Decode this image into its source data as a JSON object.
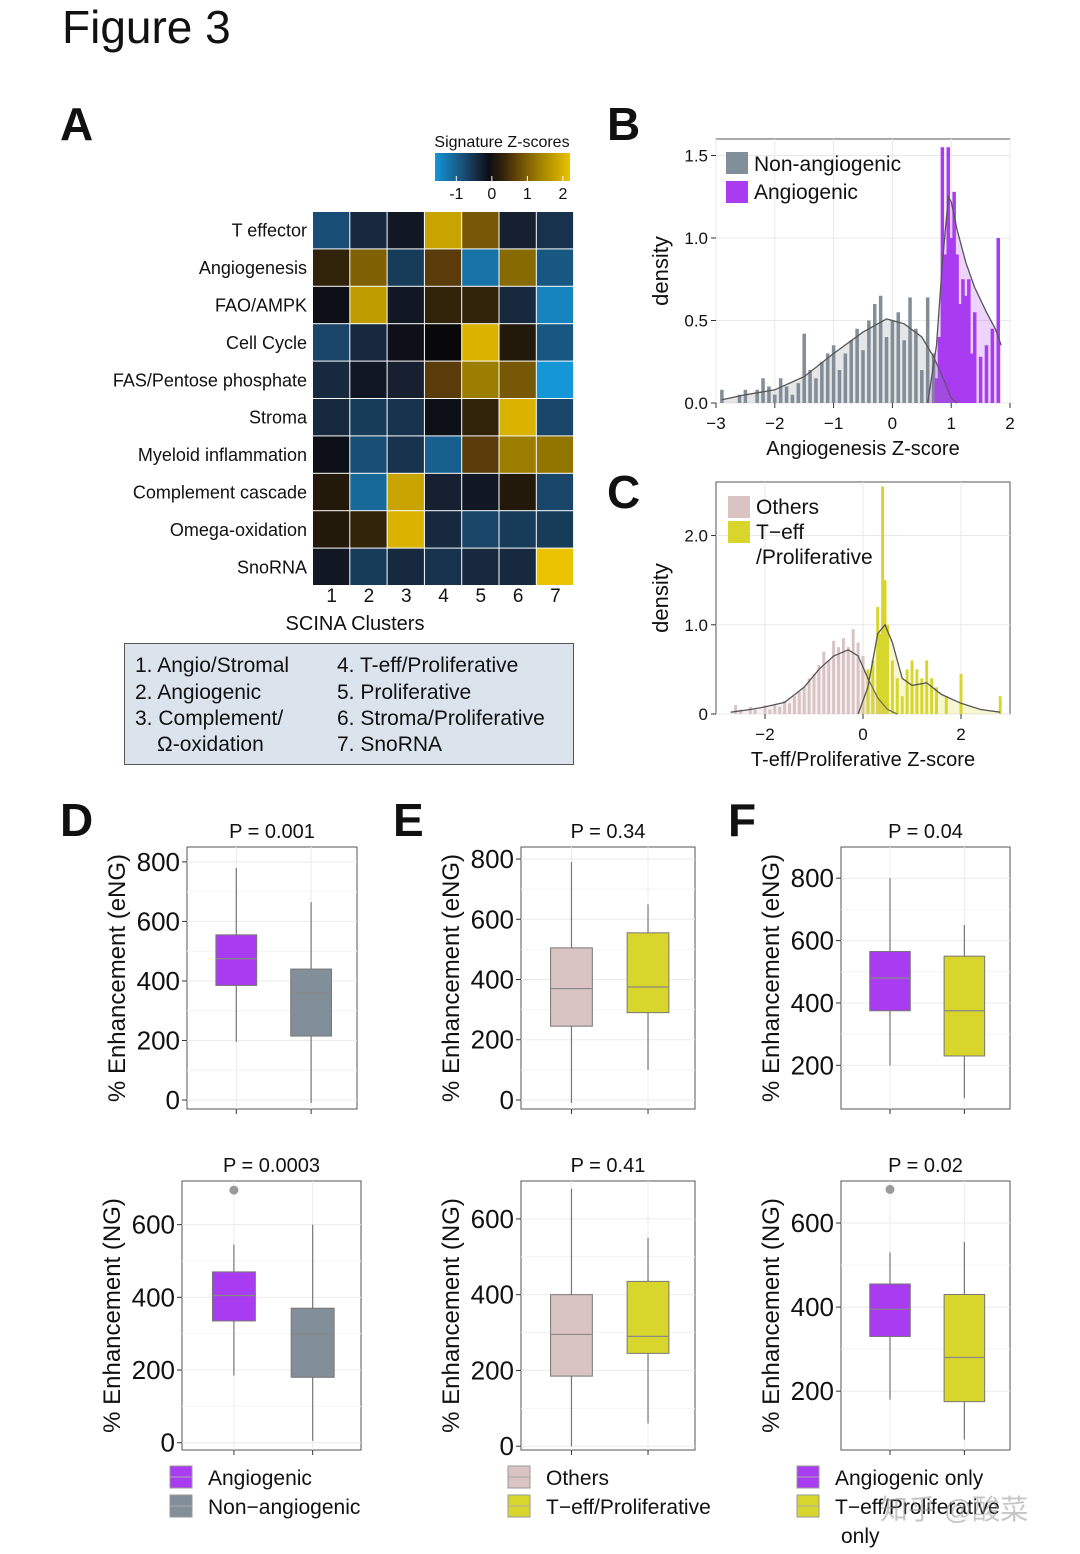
{
  "figure_title": "Figure 3",
  "panel_letters": [
    "A",
    "B",
    "C",
    "D",
    "E",
    "F"
  ],
  "watermark": "知乎 @酸菜",
  "cluster_legend": [
    "1. Angio/Stromal",
    "2. Angiogenic",
    "3. Complement/",
    "Ω-oxidation",
    "4. T-eff/Proliferative",
    "5. Proliferative",
    "6. Stroma/Proliferative",
    "7. SnoRNA"
  ],
  "colors": {
    "angiogenic": "#a93cf0",
    "non_angiogenic": "#828e98",
    "others": "#d9c3c3",
    "teff": "#d8d62c"
  },
  "chart_data": [
    {
      "panel": "A",
      "type": "heatmap",
      "title": "",
      "legend_title": "Signature Z-scores",
      "legend_ticks": [
        "-1",
        "0",
        "1",
        "2"
      ],
      "colorbar_range": [
        -1.6,
        2.2
      ],
      "xlabel": "SCINA Clusters",
      "columns": [
        "1",
        "2",
        "3",
        "4",
        "5",
        "6",
        "7"
      ],
      "rows": [
        "T effector",
        "Angiogenesis",
        "FAO/AMPK",
        "Cell Cycle",
        "FAS/Pentose phosphate",
        "Stroma",
        "Myeloid inflammation",
        "Complement cascade",
        "Omega-oxidation",
        "SnoRNA"
      ],
      "values": [
        [
          -0.8,
          -0.4,
          -0.2,
          1.8,
          0.9,
          -0.3,
          -0.5
        ],
        [
          0.3,
          1.0,
          -0.6,
          0.6,
          -1.2,
          1.1,
          -0.9
        ],
        [
          -0.1,
          1.7,
          -0.2,
          0.3,
          0.3,
          -0.4,
          -1.4
        ],
        [
          -0.7,
          -0.4,
          -0.1,
          0.0,
          2.0,
          0.2,
          -0.9
        ],
        [
          -0.4,
          -0.2,
          -0.3,
          0.6,
          1.3,
          0.9,
          -1.6
        ],
        [
          -0.4,
          -0.6,
          -0.5,
          -0.1,
          0.3,
          2.0,
          -0.7
        ],
        [
          -0.1,
          -0.8,
          -0.5,
          -1.0,
          0.6,
          1.3,
          1.2
        ],
        [
          0.2,
          -1.1,
          1.8,
          -0.3,
          -0.2,
          0.2,
          -0.7
        ],
        [
          0.2,
          0.3,
          2.0,
          -0.4,
          -0.7,
          -0.6,
          -0.6
        ],
        [
          -0.2,
          -0.6,
          -0.4,
          -0.5,
          -0.4,
          -0.4,
          2.2
        ]
      ]
    },
    {
      "panel": "B",
      "type": "histogram",
      "title": "",
      "xlabel": "Angiogenesis Z-score",
      "ylabel": "density",
      "xlim": [
        -3,
        2
      ],
      "ylim": [
        0,
        1.6
      ],
      "x_ticks": [
        "−3",
        "−2",
        "−1",
        "0",
        "1",
        "2"
      ],
      "y_ticks": [
        "0.0",
        "0.5",
        "1.0",
        "1.5"
      ],
      "bin_width": 0.1,
      "series": [
        {
          "name": "Non-angiogenic",
          "bins": [
            [
              -2.9,
              0.08
            ],
            [
              -2.6,
              0.05
            ],
            [
              -2.5,
              0.08
            ],
            [
              -2.3,
              0.08
            ],
            [
              -2.2,
              0.15
            ],
            [
              -2.1,
              0.1
            ],
            [
              -2.0,
              0.05
            ],
            [
              -1.9,
              0.15
            ],
            [
              -1.8,
              0.1
            ],
            [
              -1.7,
              0.05
            ],
            [
              -1.6,
              0.12
            ],
            [
              -1.5,
              0.42
            ],
            [
              -1.4,
              0.2
            ],
            [
              -1.3,
              0.15
            ],
            [
              -1.2,
              0.25
            ],
            [
              -1.1,
              0.3
            ],
            [
              -1.0,
              0.35
            ],
            [
              -0.9,
              0.2
            ],
            [
              -0.8,
              0.3
            ],
            [
              -0.7,
              0.38
            ],
            [
              -0.6,
              0.45
            ],
            [
              -0.5,
              0.32
            ],
            [
              -0.4,
              0.5
            ],
            [
              -0.3,
              0.6
            ],
            [
              -0.2,
              0.65
            ],
            [
              -0.1,
              0.4
            ],
            [
              0.0,
              0.5
            ],
            [
              0.1,
              0.55
            ],
            [
              0.2,
              0.38
            ],
            [
              0.3,
              0.64
            ],
            [
              0.4,
              0.45
            ],
            [
              0.5,
              0.2
            ],
            [
              0.6,
              0.64
            ],
            [
              0.7,
              0.3
            ],
            [
              0.8,
              0.15
            ]
          ],
          "density_curve": [
            [
              -2.9,
              0.02
            ],
            [
              -2.5,
              0.05
            ],
            [
              -2.0,
              0.08
            ],
            [
              -1.5,
              0.16
            ],
            [
              -1.0,
              0.3
            ],
            [
              -0.5,
              0.43
            ],
            [
              -0.1,
              0.51
            ],
            [
              0.2,
              0.48
            ],
            [
              0.5,
              0.4
            ],
            [
              0.7,
              0.28
            ],
            [
              0.9,
              0.12
            ],
            [
              1.0,
              0.03
            ],
            [
              1.1,
              0.0
            ]
          ]
        },
        {
          "name": "Angiogenic",
          "bins": [
            [
              0.75,
              0.15
            ],
            [
              0.8,
              0.4
            ],
            [
              0.85,
              1.55
            ],
            [
              0.9,
              0.9
            ],
            [
              0.95,
              1.55
            ],
            [
              1.0,
              1.0
            ],
            [
              1.05,
              1.28
            ],
            [
              1.1,
              0.9
            ],
            [
              1.15,
              0.6
            ],
            [
              1.2,
              0.75
            ],
            [
              1.25,
              0.65
            ],
            [
              1.3,
              0.75
            ],
            [
              1.35,
              0.3
            ],
            [
              1.4,
              0.55
            ],
            [
              1.5,
              0.28
            ],
            [
              1.6,
              0.35
            ],
            [
              1.7,
              0.45
            ],
            [
              1.8,
              1.0
            ]
          ],
          "density_curve": [
            [
              0.6,
              0.0
            ],
            [
              0.75,
              0.35
            ],
            [
              0.85,
              0.85
            ],
            [
              0.95,
              1.25
            ],
            [
              1.0,
              1.22
            ],
            [
              1.1,
              1.05
            ],
            [
              1.25,
              0.85
            ],
            [
              1.4,
              0.7
            ],
            [
              1.6,
              0.55
            ],
            [
              1.75,
              0.45
            ],
            [
              1.85,
              0.35
            ]
          ]
        }
      ]
    },
    {
      "panel": "C",
      "type": "histogram",
      "title": "",
      "xlabel": "T-eff/Proliferative Z-score",
      "ylabel": "density",
      "xlim": [
        -3,
        3
      ],
      "ylim": [
        0,
        2.6
      ],
      "x_ticks": [
        "−2",
        "0",
        "2"
      ],
      "y_ticks": [
        "0",
        "1.0",
        "2.0"
      ],
      "bin_width": 0.1,
      "series": [
        {
          "name": "Others",
          "bins": [
            [
              -2.6,
              0.1
            ],
            [
              -2.5,
              0.05
            ],
            [
              -2.3,
              0.08
            ],
            [
              -2.2,
              0.05
            ],
            [
              -2.0,
              0.1
            ],
            [
              -1.9,
              0.05
            ],
            [
              -1.8,
              0.1
            ],
            [
              -1.7,
              0.08
            ],
            [
              -1.6,
              0.15
            ],
            [
              -1.5,
              0.12
            ],
            [
              -1.4,
              0.2
            ],
            [
              -1.3,
              0.25
            ],
            [
              -1.2,
              0.3
            ],
            [
              -1.1,
              0.4
            ],
            [
              -1.0,
              0.45
            ],
            [
              -0.9,
              0.55
            ],
            [
              -0.8,
              0.7
            ],
            [
              -0.7,
              0.6
            ],
            [
              -0.6,
              0.82
            ],
            [
              -0.5,
              0.75
            ],
            [
              -0.4,
              0.85
            ],
            [
              -0.3,
              0.75
            ],
            [
              -0.2,
              0.95
            ],
            [
              -0.1,
              0.8
            ],
            [
              0.0,
              0.65
            ],
            [
              0.1,
              0.5
            ],
            [
              0.2,
              0.3
            ],
            [
              0.3,
              0.2
            ],
            [
              0.4,
              0.15
            ]
          ],
          "density_curve": [
            [
              -2.7,
              0.02
            ],
            [
              -2.3,
              0.05
            ],
            [
              -2.0,
              0.08
            ],
            [
              -1.6,
              0.13
            ],
            [
              -1.2,
              0.3
            ],
            [
              -0.9,
              0.5
            ],
            [
              -0.6,
              0.65
            ],
            [
              -0.3,
              0.72
            ],
            [
              -0.1,
              0.65
            ],
            [
              0.1,
              0.4
            ],
            [
              0.3,
              0.18
            ],
            [
              0.5,
              0.05
            ],
            [
              0.7,
              0.0
            ]
          ]
        },
        {
          "name": "T−eff /Proliferative",
          "bins": [
            [
              0.1,
              0.5
            ],
            [
              0.2,
              0.6
            ],
            [
              0.3,
              1.2
            ],
            [
              0.35,
              0.9
            ],
            [
              0.4,
              2.55
            ],
            [
              0.45,
              1.5
            ],
            [
              0.5,
              1.0
            ],
            [
              0.6,
              0.6
            ],
            [
              0.7,
              0.4
            ],
            [
              0.8,
              0.2
            ],
            [
              0.9,
              0.5
            ],
            [
              1.0,
              0.6
            ],
            [
              1.1,
              0.5
            ],
            [
              1.2,
              0.4
            ],
            [
              1.3,
              0.6
            ],
            [
              1.4,
              0.4
            ],
            [
              1.5,
              0.3
            ],
            [
              1.7,
              0.2
            ],
            [
              2.0,
              0.45
            ],
            [
              2.8,
              0.2
            ]
          ],
          "density_curve": [
            [
              -0.1,
              0.0
            ],
            [
              0.1,
              0.3
            ],
            [
              0.3,
              0.9
            ],
            [
              0.45,
              1.0
            ],
            [
              0.6,
              0.8
            ],
            [
              0.8,
              0.4
            ],
            [
              1.0,
              0.32
            ],
            [
              1.3,
              0.35
            ],
            [
              1.6,
              0.22
            ],
            [
              2.0,
              0.12
            ],
            [
              2.4,
              0.05
            ],
            [
              2.8,
              0.02
            ]
          ]
        }
      ]
    },
    {
      "panel": "D",
      "type": "box",
      "title": "P = 0.001",
      "ylabel": "% Enhancement (eNG)",
      "ylim": [
        -30,
        850
      ],
      "y_ticks": [
        0,
        200,
        400,
        600,
        800
      ],
      "categories": [
        "Angiogenic",
        "Non−angiogenic"
      ],
      "boxes": [
        {
          "name": "Angiogenic",
          "min": 195,
          "q1": 385,
          "median": 475,
          "q3": 555,
          "max": 780,
          "outliers": []
        },
        {
          "name": "Non−angiogenic",
          "min": -10,
          "q1": 215,
          "median": 360,
          "q3": 440,
          "max": 665,
          "outliers": []
        }
      ]
    },
    {
      "panel": "E",
      "type": "box",
      "title": "P = 0.34",
      "ylabel": "% Enhancement (eNG)",
      "ylim": [
        -30,
        840
      ],
      "y_ticks": [
        0,
        200,
        400,
        600,
        800
      ],
      "categories": [
        "Others",
        "T−eff/Proliferative"
      ],
      "boxes": [
        {
          "name": "Others",
          "min": -10,
          "q1": 245,
          "median": 370,
          "q3": 505,
          "max": 790,
          "outliers": []
        },
        {
          "name": "T−eff/Proliferative",
          "min": 100,
          "q1": 290,
          "median": 375,
          "q3": 555,
          "max": 650,
          "outliers": []
        }
      ]
    },
    {
      "panel": "F",
      "type": "box",
      "title": "P = 0.04",
      "ylabel": "% Enhancement (eNG)",
      "ylim": [
        60,
        900
      ],
      "y_ticks": [
        200,
        400,
        600,
        800
      ],
      "categories": [
        "Angiogenic only",
        "T−eff/Proliferative only"
      ],
      "boxes": [
        {
          "name": "Angiogenic only",
          "min": 200,
          "q1": 375,
          "median": 480,
          "q3": 565,
          "max": 800,
          "outliers": []
        },
        {
          "name": "T−eff/Proliferative only",
          "min": 95,
          "q1": 230,
          "median": 375,
          "q3": 550,
          "max": 650,
          "outliers": []
        }
      ]
    },
    {
      "panel": "D",
      "type": "box",
      "title": "P = 0.0003",
      "ylabel": "% Enhancement (NG)",
      "ylim": [
        -20,
        720
      ],
      "y_ticks": [
        0,
        200,
        400,
        600
      ],
      "categories": [
        "Angiogenic",
        "Non−angiogenic"
      ],
      "boxes": [
        {
          "name": "Angiogenic",
          "min": 185,
          "q1": 335,
          "median": 405,
          "q3": 470,
          "max": 545,
          "outliers": [
            695
          ]
        },
        {
          "name": "Non−angiogenic",
          "min": 5,
          "q1": 180,
          "median": 300,
          "q3": 370,
          "max": 600,
          "outliers": []
        }
      ]
    },
    {
      "panel": "E",
      "type": "box",
      "title": "P = 0.41",
      "ylabel": "% Enhancement (NG)",
      "ylim": [
        -10,
        700
      ],
      "y_ticks": [
        0,
        200,
        400,
        600
      ],
      "categories": [
        "Others",
        "T−eff/Proliferative"
      ],
      "boxes": [
        {
          "name": "Others",
          "min": 0,
          "q1": 185,
          "median": 295,
          "q3": 400,
          "max": 680,
          "outliers": []
        },
        {
          "name": "T−eff/Proliferative",
          "min": 60,
          "q1": 245,
          "median": 290,
          "q3": 435,
          "max": 550,
          "outliers": []
        }
      ]
    },
    {
      "panel": "F",
      "type": "box",
      "title": "P = 0.02",
      "ylabel": "% Enhancement (NG)",
      "ylim": [
        60,
        700
      ],
      "y_ticks": [
        200,
        400,
        600
      ],
      "categories": [
        "Angiogenic only",
        "T−eff/Proliferative only"
      ],
      "boxes": [
        {
          "name": "Angiogenic only",
          "min": 180,
          "q1": 330,
          "median": 395,
          "q3": 455,
          "max": 530,
          "outliers": [
            680
          ]
        },
        {
          "name": "T−eff/Proliferative only",
          "min": 85,
          "q1": 175,
          "median": 280,
          "q3": 430,
          "max": 555,
          "outliers": []
        }
      ]
    }
  ],
  "box_legends": [
    {
      "panel": "D",
      "items": [
        {
          "label": "Angiogenic",
          "color": "#a93cf0"
        },
        {
          "label": "Non−angiogenic",
          "color": "#828e98"
        }
      ]
    },
    {
      "panel": "E",
      "items": [
        {
          "label": "Others",
          "color": "#d9c3c3"
        },
        {
          "label": "T−eff/Proliferative",
          "color": "#d8d62c"
        }
      ]
    },
    {
      "panel": "F",
      "items": [
        {
          "label": "Angiogenic only",
          "color": "#a93cf0"
        },
        {
          "label": "T−eff/Proliferative",
          "color": "#d8d62c"
        },
        {
          "label": "only",
          "color": ""
        }
      ]
    }
  ]
}
